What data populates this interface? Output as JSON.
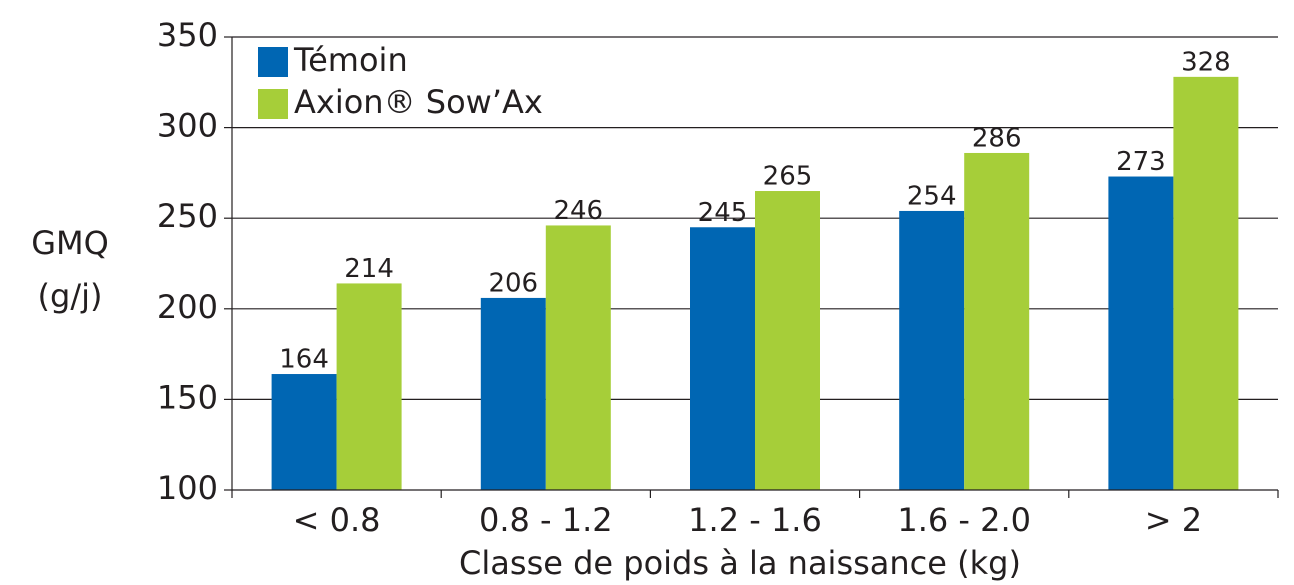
{
  "chart_data": {
    "type": "bar",
    "ylabel": [
      "GMQ",
      "(g/j)"
    ],
    "xlabel": "Classe de poids à la naissance (kg)",
    "categories": [
      "< 0.8",
      "0.8 - 1.2",
      "1.2 - 1.6",
      "1.6 - 2.0",
      "> 2"
    ],
    "series": [
      {
        "name": "Témoin",
        "color": "#0066b3",
        "values": [
          164,
          206,
          245,
          254,
          273
        ]
      },
      {
        "name": "Axion® Sow’Ax",
        "color": "#a6ce39",
        "values": [
          214,
          246,
          265,
          286,
          328
        ]
      }
    ],
    "ylim": [
      100,
      350
    ],
    "yticks": [
      100,
      150,
      200,
      250,
      300,
      350
    ],
    "grid": true,
    "legend": "upper left"
  }
}
